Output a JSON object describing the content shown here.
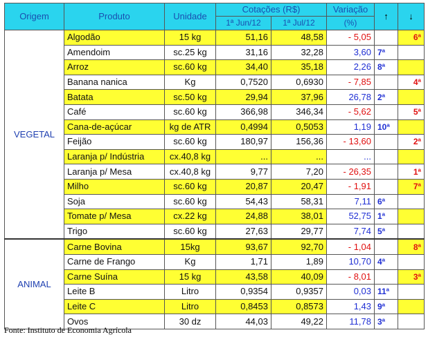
{
  "headers": {
    "origem": "Origem",
    "produto": "Produto",
    "unidade": "Unidade",
    "cotacoes": "Cotações (R$)",
    "date1": "1ª Jun/12",
    "date2": "1ª Jul/12",
    "variacao": "Variação",
    "variacao_unit": "(%)",
    "up_arrow": "↑",
    "down_arrow": "↓"
  },
  "groups": [
    {
      "origem": "VEGETAL",
      "rows": [
        {
          "produto": "Algodão",
          "unidade": "15 kg",
          "jun": "51,16",
          "jul": "48,58",
          "variacao": "- 5,05",
          "rank_up": "",
          "rank_down": "6ª",
          "highlight": true
        },
        {
          "produto": "Amendoim",
          "unidade": "sc.25 kg",
          "jun": "31,16",
          "jul": "32,28",
          "variacao": "3,60",
          "rank_up": "7ª",
          "rank_down": "",
          "highlight": false
        },
        {
          "produto": "Arroz",
          "unidade": "sc.60 kg",
          "jun": "34,40",
          "jul": "35,18",
          "variacao": "2,26",
          "rank_up": "8ª",
          "rank_down": "",
          "highlight": true
        },
        {
          "produto": "Banana nanica",
          "unidade": "Kg",
          "jun": "0,7520",
          "jul": "0,6930",
          "variacao": "- 7,85",
          "rank_up": "",
          "rank_down": "4ª",
          "highlight": false
        },
        {
          "produto": "Batata",
          "unidade": "sc.50 kg",
          "jun": "29,94",
          "jul": "37,96",
          "variacao": "26,78",
          "rank_up": "2ª",
          "rank_down": "",
          "highlight": true
        },
        {
          "produto": "Café",
          "unidade": "sc.60 kg",
          "jun": "366,98",
          "jul": "346,34",
          "variacao": "- 5,62",
          "rank_up": "",
          "rank_down": "5ª",
          "highlight": false
        },
        {
          "produto": "Cana-de-açúcar",
          "unidade": "kg de ATR",
          "jun": "0,4994",
          "jul": "0,5053",
          "variacao": "1,19",
          "rank_up": "10ª",
          "rank_down": "",
          "highlight": true
        },
        {
          "produto": "Feijão",
          "unidade": "sc.60 kg",
          "jun": "180,97",
          "jul": "156,36",
          "variacao": "- 13,60",
          "rank_up": "",
          "rank_down": "2ª",
          "highlight": false
        },
        {
          "produto": "Laranja p/ Indústria",
          "unidade": "cx.40,8 kg",
          "jun": "...",
          "jul": "...",
          "variacao": "...",
          "rank_up": "",
          "rank_down": "",
          "highlight": true
        },
        {
          "produto": "Laranja p/ Mesa",
          "unidade": "cx.40,8 kg",
          "jun": "9,77",
          "jul": "7,20",
          "variacao": "- 26,35",
          "rank_up": "",
          "rank_down": "1ª",
          "highlight": false
        },
        {
          "produto": "Milho",
          "unidade": "sc.60 kg",
          "jun": "20,87",
          "jul": "20,47",
          "variacao": "- 1,91",
          "rank_up": "",
          "rank_down": "7ª",
          "highlight": true
        },
        {
          "produto": "Soja",
          "unidade": "sc.60 kg",
          "jun": "54,43",
          "jul": "58,31",
          "variacao": "7,11",
          "rank_up": "6ª",
          "rank_down": "",
          "highlight": false
        },
        {
          "produto": "Tomate p/ Mesa",
          "unidade": "cx.22 kg",
          "jun": "24,88",
          "jul": "38,01",
          "variacao": "52,75",
          "rank_up": "1ª",
          "rank_down": "",
          "highlight": true
        },
        {
          "produto": "Trigo",
          "unidade": "sc.60 kg",
          "jun": "27,63",
          "jul": "29,77",
          "variacao": "7,74",
          "rank_up": "5ª",
          "rank_down": "",
          "highlight": false
        }
      ]
    },
    {
      "origem": "ANIMAL",
      "rows": [
        {
          "produto": "Carne Bovina",
          "unidade": "15kg",
          "jun": "93,67",
          "jul": "92,70",
          "variacao": "- 1,04",
          "rank_up": "",
          "rank_down": "8ª",
          "highlight": true
        },
        {
          "produto": "Carne de Frango",
          "unidade": "Kg",
          "jun": "1,71",
          "jul": "1,89",
          "variacao": "10,70",
          "rank_up": "4ª",
          "rank_down": "",
          "highlight": false
        },
        {
          "produto": "Carne Suína",
          "unidade": "15 kg",
          "jun": "43,58",
          "jul": "40,09",
          "variacao": "- 8,01",
          "rank_up": "",
          "rank_down": "3ª",
          "highlight": true
        },
        {
          "produto": "Leite B",
          "unidade": "Litro",
          "jun": "0,9354",
          "jul": "0,9357",
          "variacao": "0,03",
          "rank_up": "11ª",
          "rank_down": "",
          "highlight": false
        },
        {
          "produto": "Leite C",
          "unidade": "Litro",
          "jun": "0,8453",
          "jul": "0,8573",
          "variacao": "1,43",
          "rank_up": "9ª",
          "rank_down": "",
          "highlight": true
        },
        {
          "produto": "Ovos",
          "unidade": "30 dz",
          "jun": "44,03",
          "jul": "49,22",
          "variacao": "11,78",
          "rank_up": "3ª",
          "rank_down": "",
          "highlight": false
        }
      ]
    }
  ],
  "fonte": "Fonte: Instituto de Economia Agrícola",
  "colors": {
    "header_bg": "#2ad4ee",
    "highlight": "#ffff33",
    "positive": "#1f2fd4",
    "negative": "#e01010"
  }
}
